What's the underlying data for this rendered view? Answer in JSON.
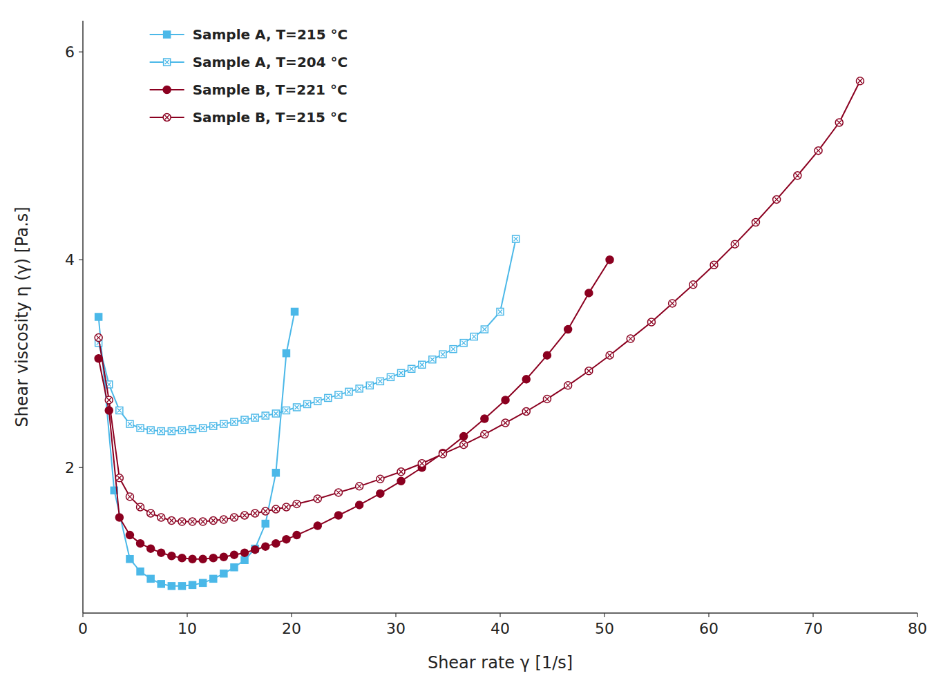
{
  "chart_data": {
    "type": "line",
    "xlabel": "Shear rate γ [1/s]",
    "ylabel": "Shear viscosity η (γ) [Pa.s]",
    "xlim": [
      0,
      80
    ],
    "ylim": [
      0.6,
      6.3
    ],
    "xticks": [
      0,
      10,
      20,
      30,
      40,
      50,
      60,
      70,
      80
    ],
    "yticks": [
      2,
      4,
      6
    ],
    "grid": false,
    "legend": "upper-left",
    "series": [
      {
        "name": "Sample A, T=215 °C",
        "color": "#4BB8E8",
        "marker": "square",
        "line_style": "solid",
        "x": [
          1.5,
          3.0,
          4.5,
          5.5,
          6.5,
          7.5,
          8.5,
          9.5,
          10.5,
          11.5,
          12.5,
          13.5,
          14.5,
          15.5,
          16.5,
          17.5,
          18.5,
          19.5,
          20.3
        ],
        "values": [
          3.45,
          1.78,
          1.12,
          1.0,
          0.93,
          0.88,
          0.86,
          0.86,
          0.87,
          0.89,
          0.93,
          0.98,
          1.04,
          1.11,
          1.22,
          1.46,
          1.95,
          3.1,
          3.5
        ]
      },
      {
        "name": "Sample A, T=204 °C",
        "color": "#4BB8E8",
        "marker": "square-open-x",
        "line_style": "solid",
        "x": [
          1.5,
          2.5,
          3.5,
          4.5,
          5.5,
          6.5,
          7.5,
          8.5,
          9.5,
          10.5,
          11.5,
          12.5,
          13.5,
          14.5,
          15.5,
          16.5,
          17.5,
          18.5,
          19.5,
          20.5,
          21.5,
          22.5,
          23.5,
          24.5,
          25.5,
          26.5,
          27.5,
          28.5,
          29.5,
          30.5,
          31.5,
          32.5,
          33.5,
          34.5,
          35.5,
          36.5,
          37.5,
          38.5,
          40.0,
          41.5
        ],
        "values": [
          3.2,
          2.8,
          2.55,
          2.42,
          2.38,
          2.36,
          2.35,
          2.35,
          2.36,
          2.37,
          2.38,
          2.4,
          2.42,
          2.44,
          2.46,
          2.48,
          2.5,
          2.52,
          2.55,
          2.58,
          2.61,
          2.64,
          2.67,
          2.7,
          2.73,
          2.76,
          2.79,
          2.83,
          2.87,
          2.91,
          2.95,
          2.99,
          3.04,
          3.09,
          3.14,
          3.2,
          3.26,
          3.33,
          3.5,
          4.2
        ]
      },
      {
        "name": "Sample B, T=221 °C",
        "color": "#8B0020",
        "marker": "circle",
        "line_style": "solid",
        "x": [
          1.5,
          2.5,
          3.5,
          4.5,
          5.5,
          6.5,
          7.5,
          8.5,
          9.5,
          10.5,
          11.5,
          12.5,
          13.5,
          14.5,
          15.5,
          16.5,
          17.5,
          18.5,
          19.5,
          20.5,
          22.5,
          24.5,
          26.5,
          28.5,
          30.5,
          32.5,
          34.5,
          36.5,
          38.5,
          40.5,
          42.5,
          44.5,
          46.5,
          48.5,
          50.5
        ],
        "values": [
          3.05,
          2.55,
          1.52,
          1.35,
          1.27,
          1.22,
          1.18,
          1.15,
          1.13,
          1.12,
          1.12,
          1.13,
          1.14,
          1.16,
          1.18,
          1.21,
          1.24,
          1.27,
          1.31,
          1.35,
          1.44,
          1.54,
          1.64,
          1.75,
          1.87,
          2.0,
          2.14,
          2.3,
          2.47,
          2.65,
          2.85,
          3.08,
          3.33,
          3.68,
          4.0
        ]
      },
      {
        "name": "Sample B, T=215 °C",
        "color": "#8B0020",
        "marker": "circle-open-x",
        "line_style": "solid",
        "x": [
          1.5,
          2.5,
          3.5,
          4.5,
          5.5,
          6.5,
          7.5,
          8.5,
          9.5,
          10.5,
          11.5,
          12.5,
          13.5,
          14.5,
          15.5,
          16.5,
          17.5,
          18.5,
          19.5,
          20.5,
          22.5,
          24.5,
          26.5,
          28.5,
          30.5,
          32.5,
          34.5,
          36.5,
          38.5,
          40.5,
          42.5,
          44.5,
          46.5,
          48.5,
          50.5,
          52.5,
          54.5,
          56.5,
          58.5,
          60.5,
          62.5,
          64.5,
          66.5,
          68.5,
          70.5,
          72.5,
          74.5
        ],
        "values": [
          3.25,
          2.65,
          1.9,
          1.72,
          1.62,
          1.56,
          1.52,
          1.49,
          1.48,
          1.48,
          1.48,
          1.49,
          1.5,
          1.52,
          1.54,
          1.56,
          1.58,
          1.6,
          1.62,
          1.65,
          1.7,
          1.76,
          1.82,
          1.89,
          1.96,
          2.04,
          2.13,
          2.22,
          2.32,
          2.43,
          2.54,
          2.66,
          2.79,
          2.93,
          3.08,
          3.24,
          3.4,
          3.58,
          3.76,
          3.95,
          4.15,
          4.36,
          4.58,
          4.81,
          5.05,
          5.32,
          5.72
        ]
      }
    ]
  }
}
